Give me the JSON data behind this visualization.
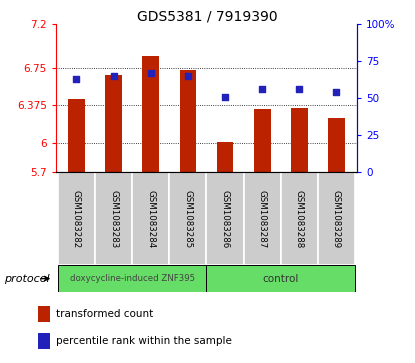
{
  "title": "GDS5381 / 7919390",
  "samples": [
    "GSM1083282",
    "GSM1083283",
    "GSM1083284",
    "GSM1083285",
    "GSM1083286",
    "GSM1083287",
    "GSM1083288",
    "GSM1083289"
  ],
  "bar_values": [
    6.44,
    6.68,
    6.87,
    6.73,
    6.01,
    6.34,
    6.35,
    6.25
  ],
  "percentile_values": [
    63,
    65,
    67,
    65,
    51,
    56,
    56,
    54
  ],
  "bar_bottom": 5.7,
  "ylim_left": [
    5.7,
    7.2
  ],
  "ylim_right": [
    0,
    100
  ],
  "yticks_left": [
    5.7,
    6.0,
    6.375,
    6.75,
    7.2
  ],
  "ytick_labels_left": [
    "5.7",
    "6",
    "6.375",
    "6.75",
    "7.2"
  ],
  "yticks_right": [
    0,
    25,
    50,
    75,
    100
  ],
  "ytick_labels_right": [
    "0",
    "25",
    "50",
    "75",
    "100%"
  ],
  "bar_color": "#bb2200",
  "dot_color": "#2222bb",
  "plot_bg": "#ffffff",
  "sample_box_color": "#cccccc",
  "protocol_group1_label": "doxycycline-induced ZNF395",
  "protocol_group2_label": "control",
  "protocol_group_color": "#66dd66",
  "protocol_label": "protocol",
  "legend_bar_label": "transformed count",
  "legend_dot_label": "percentile rank within the sample",
  "tick_fontsize": 7.5,
  "title_fontsize": 10,
  "bar_width": 0.45,
  "xlim": [
    -0.55,
    7.55
  ],
  "gridline_y": [
    6.0,
    6.375,
    6.75
  ],
  "gridline_color": "#000000",
  "gridline_lw": 0.6,
  "gridline_style": "dotted"
}
